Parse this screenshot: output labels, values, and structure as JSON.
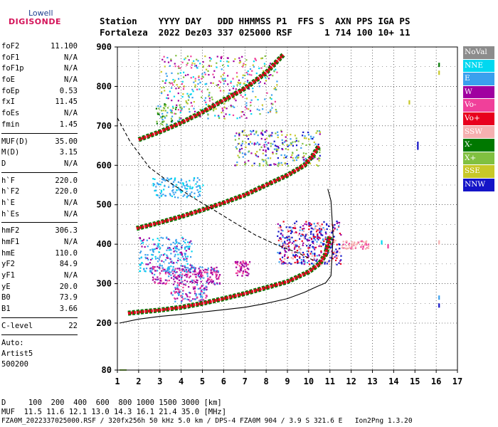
{
  "logo": {
    "top": "Lowell",
    "bottom": "DIGISONDE"
  },
  "header": {
    "row1": "Station    YYYY DAY   DDD HHMMSS P1  FFS S  AXN PPS IGA PS",
    "row2": "Fortaleza  2022 Dez03 337 025000 RSF      1 714 100 10+ 11"
  },
  "params": {
    "group1": [
      {
        "label": "foF2",
        "value": "11.100"
      },
      {
        "label": "foF1",
        "value": "N/A"
      },
      {
        "label": "foF1p",
        "value": "N/A"
      },
      {
        "label": "foE",
        "value": "N/A"
      },
      {
        "label": "foEp",
        "value": "0.53"
      },
      {
        "label": "fxI",
        "value": "11.45"
      },
      {
        "label": "foEs",
        "value": "N/A"
      },
      {
        "label": "fmin",
        "value": "1.45"
      }
    ],
    "group2": [
      {
        "label": "MUF(D)",
        "value": "35.00"
      },
      {
        "label": "M(D)",
        "value": "3.15"
      },
      {
        "label": "D",
        "value": "N/A"
      }
    ],
    "group3": [
      {
        "label": "h`F",
        "value": "220.0"
      },
      {
        "label": "h`F2",
        "value": "220.0"
      },
      {
        "label": "h`E",
        "value": "N/A"
      },
      {
        "label": "h`Es",
        "value": "N/A"
      }
    ],
    "group4": [
      {
        "label": "hmF2",
        "value": "306.3"
      },
      {
        "label": "hmF1",
        "value": "N/A"
      },
      {
        "label": "hmE",
        "value": "110.0"
      },
      {
        "label": "yF2",
        "value": "84.9"
      },
      {
        "label": "yF1",
        "value": "N/A"
      },
      {
        "label": "yE",
        "value": "20.0"
      },
      {
        "label": "B0",
        "value": "73.9"
      },
      {
        "label": "B1",
        "value": "3.66"
      }
    ],
    "group5": [
      {
        "label": "C-level",
        "value": "22"
      }
    ],
    "auto": [
      "Auto:",
      "Artist5",
      "500200"
    ]
  },
  "legend": [
    {
      "label": "NoVal",
      "color": "#8c8c8c"
    },
    {
      "label": "NNE",
      "color": "#00d8f0"
    },
    {
      "label": "E",
      "color": "#3aa0ee"
    },
    {
      "label": "W",
      "color": "#a000a0"
    },
    {
      "label": "Vo-",
      "color": "#f0409a"
    },
    {
      "label": "Vo+",
      "color": "#e8001e"
    },
    {
      "label": "SSW",
      "color": "#f5b0b0"
    },
    {
      "label": "X-",
      "color": "#007800"
    },
    {
      "label": "X+",
      "color": "#80c040"
    },
    {
      "label": "SSE",
      "color": "#c8c828"
    },
    {
      "label": "NNW",
      "color": "#1414c8"
    }
  ],
  "footer": {
    "row1": "D     100  200  400  600  800 1000 1500 3000 [km]",
    "row2": "MUF  11.5 11.6 12.1 13.0 14.3 16.1 21.4 35.0 [MHz]",
    "row3": "FZA0M_2022337025000.RSF / 320fx256h 50 kHz 5.0 km / DPS-4 FZA0M 904 / 3.9 S 321.6 E   Ion2Png 1.3.20"
  },
  "chart_data": {
    "type": "scatter",
    "xlim": [
      1,
      17
    ],
    "ylim": [
      80,
      900
    ],
    "x_ticks": [
      "1",
      "2",
      "3",
      "4",
      "5",
      "6",
      "7",
      "8",
      "9",
      "10",
      "11",
      "12",
      "13",
      "14",
      "15",
      "16",
      "17"
    ],
    "y_ticks": [
      "80",
      "200",
      "300",
      "400",
      "500",
      "600",
      "700",
      "800",
      "900"
    ],
    "grid": "dotted",
    "traces": [
      {
        "name": "Vo+",
        "color": "#e8001e",
        "x": [
          1.5,
          2,
          3,
          4,
          5,
          6,
          7,
          8,
          9,
          10,
          10.5,
          10.8,
          11
        ],
        "y": [
          225,
          228,
          233,
          240,
          250,
          262,
          275,
          290,
          305,
          330,
          350,
          375,
          420
        ]
      },
      {
        "name": "Vo+",
        "color": "#e8001e",
        "x": [
          1.9,
          3,
          4,
          5,
          6,
          7,
          8,
          9,
          9.8,
          10.2,
          10.5
        ],
        "y": [
          440,
          455,
          470,
          487,
          505,
          525,
          550,
          575,
          600,
          625,
          650
        ]
      },
      {
        "name": "Vo+",
        "color": "#e8001e",
        "x": [
          2,
          3,
          4,
          5,
          6,
          7,
          8,
          8.8
        ],
        "y": [
          665,
          685,
          708,
          735,
          765,
          795,
          835,
          880
        ]
      }
    ],
    "model_profile": {
      "color": "#000000",
      "x": [
        1.1,
        2,
        3,
        4,
        5,
        6,
        7,
        8,
        9,
        9.8,
        10.4,
        10.8,
        11.05,
        11.15,
        11.05,
        10.9
      ],
      "y": [
        200,
        210,
        217,
        222,
        228,
        234,
        240,
        250,
        262,
        278,
        293,
        302,
        320,
        420,
        510,
        540
      ]
    },
    "dashed_curve": {
      "color": "#000000",
      "x": [
        1,
        1.6,
        2.5,
        3.5,
        4.5,
        5.5,
        6.5,
        7.5,
        8.5,
        9.5,
        10.2
      ],
      "y": [
        720,
        660,
        595,
        555,
        520,
        488,
        455,
        423,
        398,
        378,
        360
      ]
    }
  }
}
